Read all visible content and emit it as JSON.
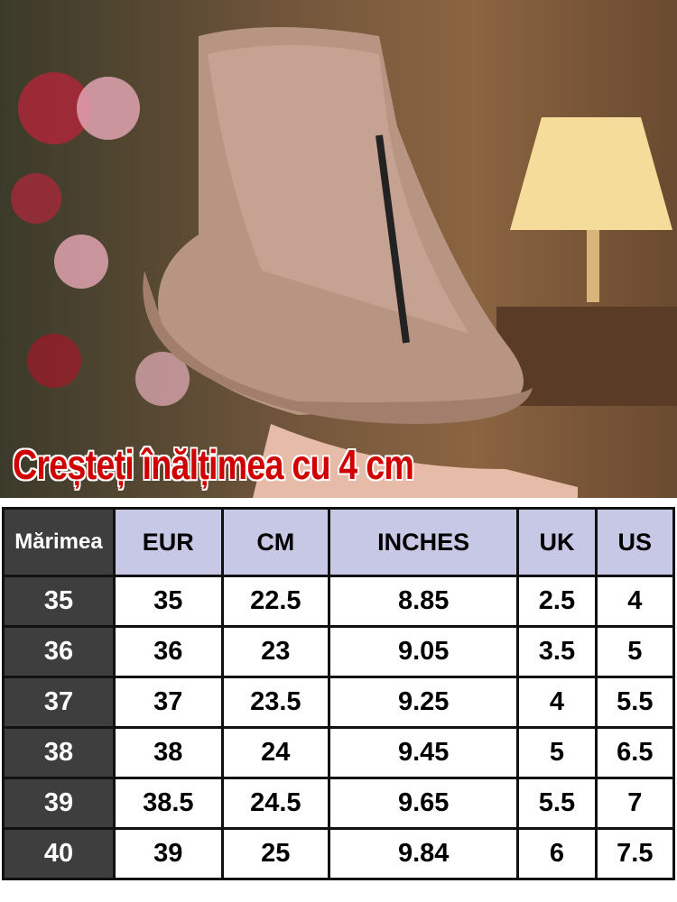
{
  "banner": {
    "headline": "Creșteți înălțimea cu 4 cm"
  },
  "size_chart": {
    "columns": [
      "Mărimea",
      "EUR",
      "CM",
      "INCHES",
      "UK",
      "US"
    ],
    "rows": [
      [
        "35",
        "35",
        "22.5",
        "8.85",
        "2.5",
        "4"
      ],
      [
        "36",
        "36",
        "23",
        "9.05",
        "3.5",
        "5"
      ],
      [
        "37",
        "37",
        "23.5",
        "9.25",
        "4",
        "5.5"
      ],
      [
        "38",
        "38",
        "24",
        "9.45",
        "5",
        "6.5"
      ],
      [
        "39",
        "38.5",
        "24.5",
        "9.65",
        "5.5",
        "7"
      ],
      [
        "40",
        "39",
        "25",
        "9.84",
        "6",
        "7.5"
      ]
    ],
    "colors": {
      "header_bg": "#c7c8e6",
      "label_bg": "#3e3e3e",
      "headline": "#d00000"
    }
  }
}
